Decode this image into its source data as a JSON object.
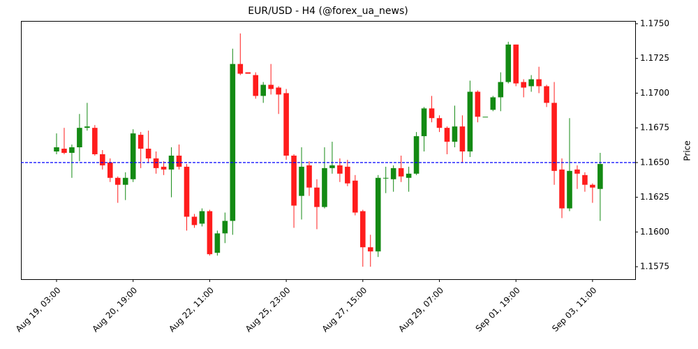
{
  "chart_data": {
    "type": "candlestick",
    "title": "EUR/USD - H4 (@forex_ua_news)",
    "y_label": "Price",
    "categories": [
      "Aug 19, 03:00",
      null,
      null,
      null,
      null,
      null,
      null,
      null,
      null,
      null,
      "Aug 20, 19:00",
      null,
      null,
      null,
      null,
      null,
      null,
      null,
      null,
      null,
      "Aug 22, 11:00",
      null,
      null,
      null,
      null,
      null,
      null,
      null,
      null,
      null,
      "Aug 25, 23:00",
      null,
      null,
      null,
      null,
      null,
      null,
      null,
      null,
      null,
      "Aug 27, 15:00",
      null,
      null,
      null,
      null,
      null,
      null,
      null,
      null,
      null,
      "Aug 29, 07:00",
      null,
      null,
      null,
      null,
      null,
      null,
      null,
      null,
      null,
      "Sep 01, 19:00",
      null,
      null,
      null,
      null,
      null,
      null,
      null,
      null,
      null,
      "Sep 03, 11:00",
      null
    ],
    "open": [
      1.1658,
      1.166,
      1.1657,
      1.1661,
      1.1675,
      1.1675,
      1.1656,
      1.165,
      1.1639,
      1.1634,
      1.1638,
      1.167,
      1.166,
      1.1653,
      1.1647,
      1.1645,
      1.1655,
      1.1647,
      1.1611,
      1.1606,
      1.1615,
      1.1585,
      1.1599,
      1.1608,
      1.1721,
      1.1715,
      1.1713,
      1.1698,
      1.1706,
      1.1704,
      1.17,
      1.1655,
      1.1626,
      1.1648,
      1.1632,
      1.1618,
      1.1646,
      1.1648,
      1.1647,
      1.1637,
      1.1615,
      1.1589,
      1.1586,
      1.1639,
      1.1638,
      1.1646,
      1.1639,
      1.1642,
      1.1669,
      1.1689,
      1.1682,
      1.1675,
      1.1665,
      1.1676,
      1.1658,
      1.1701,
      1.1683,
      1.1688,
      1.1697,
      1.1708,
      1.1735,
      1.1708,
      1.1705,
      1.171,
      1.1705,
      1.1693,
      1.1645,
      1.1617,
      1.1645,
      1.1641,
      1.1634,
      1.1631
    ],
    "high": [
      1.1671,
      1.1675,
      1.1663,
      1.1685,
      1.1693,
      1.1677,
      1.1659,
      1.1653,
      1.164,
      1.1643,
      1.1674,
      1.1672,
      1.1673,
      1.1658,
      1.1651,
      1.1661,
      1.1663,
      1.1649,
      1.1613,
      1.1617,
      1.1616,
      1.1601,
      1.1614,
      1.1732,
      1.1743,
      1.1715,
      1.1715,
      1.1708,
      1.1721,
      1.1705,
      1.1703,
      1.1656,
      1.1661,
      1.1651,
      1.1638,
      1.1661,
      1.1665,
      1.1653,
      1.1652,
      1.1641,
      1.1616,
      1.1598,
      1.1641,
      1.1647,
      1.1648,
      1.1655,
      1.1647,
      1.1672,
      1.169,
      1.1698,
      1.1684,
      1.1676,
      1.1691,
      1.1684,
      1.1709,
      1.1702,
      1.1683,
      1.1698,
      1.1715,
      1.1737,
      1.1735,
      1.171,
      1.1713,
      1.1719,
      1.1706,
      1.1708,
      1.1653,
      1.1682,
      1.1648,
      1.1643,
      1.1635,
      1.1657
    ],
    "low": [
      1.1656,
      1.1656,
      1.1639,
      1.1651,
      1.1673,
      1.1655,
      1.1645,
      1.1636,
      1.1621,
      1.1623,
      1.1636,
      1.1646,
      1.165,
      1.1642,
      1.1641,
      1.1625,
      1.1645,
      1.1601,
      1.1603,
      1.1604,
      1.1583,
      1.1583,
      1.1592,
      1.1598,
      1.1713,
      1.1714,
      1.1696,
      1.1693,
      1.1699,
      1.1685,
      1.1652,
      1.1603,
      1.1609,
      1.1626,
      1.1602,
      1.1617,
      1.1642,
      1.1636,
      1.1633,
      1.1612,
      1.1575,
      1.1575,
      1.1582,
      1.1628,
      1.1629,
      1.1636,
      1.1629,
      1.1641,
      1.1658,
      1.1679,
      1.1672,
      1.1656,
      1.1661,
      1.165,
      1.1654,
      1.1679,
      1.1683,
      1.1687,
      1.1687,
      1.1707,
      1.1705,
      1.1697,
      1.1701,
      1.17,
      1.169,
      1.1634,
      1.161,
      1.1615,
      1.1631,
      1.1629,
      1.1621,
      1.1608
    ],
    "close": [
      1.1661,
      1.1657,
      1.1661,
      1.1675,
      1.1676,
      1.1656,
      1.1648,
      1.1639,
      1.1634,
      1.1639,
      1.1671,
      1.166,
      1.1653,
      1.1646,
      1.1645,
      1.1655,
      1.1647,
      1.1611,
      1.1605,
      1.1615,
      1.1584,
      1.1599,
      1.1608,
      1.1721,
      1.1714,
      1.1714,
      1.1698,
      1.1706,
      1.1703,
      1.1699,
      1.1655,
      1.1619,
      1.1647,
      1.1632,
      1.1618,
      1.1646,
      1.1648,
      1.1642,
      1.1635,
      1.1614,
      1.1589,
      1.1586,
      1.1639,
      1.1639,
      1.1646,
      1.164,
      1.1642,
      1.1669,
      1.1689,
      1.1682,
      1.1675,
      1.1665,
      1.1676,
      1.1658,
      1.1701,
      1.1683,
      1.1683,
      1.1697,
      1.1708,
      1.1735,
      1.1707,
      1.1704,
      1.171,
      1.1705,
      1.1693,
      1.1644,
      1.1617,
      1.1644,
      1.1642,
      1.1634,
      1.1632,
      1.1649
    ],
    "up_color": "#138a13",
    "down_color": "#ff1c1c",
    "hline": 1.165,
    "hline_color": "#0000ff",
    "ylim": [
      1.1566,
      1.1752
    ],
    "yticks": [
      {
        "value": 1.1575,
        "label": "1.1575"
      },
      {
        "value": 1.16,
        "label": "1.1600"
      },
      {
        "value": 1.1625,
        "label": "1.1625"
      },
      {
        "value": 1.165,
        "label": "1.1650"
      },
      {
        "value": 1.1675,
        "label": "1.1675"
      },
      {
        "value": 1.17,
        "label": "1.1700"
      },
      {
        "value": 1.1725,
        "label": "1.1725"
      },
      {
        "value": 1.175,
        "label": "1.1750"
      }
    ]
  }
}
